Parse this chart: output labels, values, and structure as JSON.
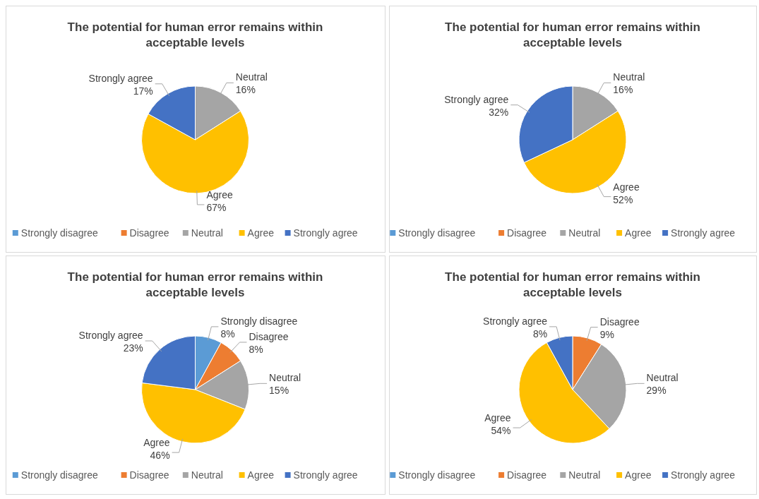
{
  "chart_data": [
    {
      "type": "pie",
      "title": "The potential for human error remains within acceptable levels",
      "categories": [
        "Strongly disagree",
        "Disagree",
        "Neutral",
        "Agree",
        "Strongly agree"
      ],
      "values": [
        0,
        0,
        16,
        67,
        17
      ],
      "value_labels": [
        null,
        null,
        "16%",
        "67%",
        "17%"
      ],
      "colors": [
        "#5b9bd5",
        "#ed7d31",
        "#a5a5a5",
        "#ffc000",
        "#4472c4"
      ],
      "legend": "bottom"
    },
    {
      "type": "pie",
      "title": "The potential for human error remains within acceptable levels",
      "categories": [
        "Strongly disagree",
        "Disagree",
        "Neutral",
        "Agree",
        "Strongly agree"
      ],
      "values": [
        0,
        0,
        16,
        52,
        32
      ],
      "value_labels": [
        null,
        null,
        "16%",
        "52%",
        "32%"
      ],
      "colors": [
        "#5b9bd5",
        "#ed7d31",
        "#a5a5a5",
        "#ffc000",
        "#4472c4"
      ],
      "legend": "bottom"
    },
    {
      "type": "pie",
      "title": "The potential for human error remains within acceptable levels",
      "categories": [
        "Strongly disagree",
        "Disagree",
        "Neutral",
        "Agree",
        "Strongly agree"
      ],
      "values": [
        8,
        8,
        15,
        46,
        23
      ],
      "value_labels": [
        "8%",
        "8%",
        "15%",
        "46%",
        "23%"
      ],
      "colors": [
        "#5b9bd5",
        "#ed7d31",
        "#a5a5a5",
        "#ffc000",
        "#4472c4"
      ],
      "legend": "bottom"
    },
    {
      "type": "pie",
      "title": "The potential for human error remains within acceptable levels",
      "categories": [
        "Strongly disagree",
        "Disagree",
        "Neutral",
        "Agree",
        "Strongly agree"
      ],
      "values": [
        0,
        9,
        29,
        54,
        8
      ],
      "value_labels": [
        null,
        "9%",
        "29%",
        "54%",
        "8%"
      ],
      "colors": [
        "#5b9bd5",
        "#ed7d31",
        "#a5a5a5",
        "#ffc000",
        "#4472c4"
      ],
      "legend": "bottom"
    }
  ]
}
